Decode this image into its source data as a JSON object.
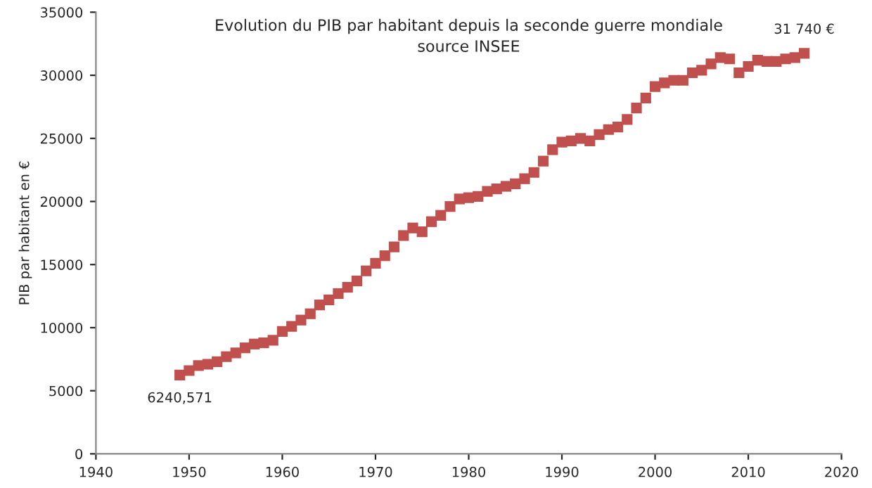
{
  "chart_data": {
    "type": "scatter",
    "title": "Evolution du PIB par habitant depuis la seconde guerre mondiale",
    "subtitle": "source INSEE",
    "ylabel": "PIB par habitant en €",
    "x": [
      1949,
      1950,
      1951,
      1952,
      1953,
      1954,
      1955,
      1956,
      1957,
      1958,
      1959,
      1960,
      1961,
      1962,
      1963,
      1964,
      1965,
      1966,
      1967,
      1968,
      1969,
      1970,
      1971,
      1972,
      1973,
      1974,
      1975,
      1976,
      1977,
      1978,
      1979,
      1980,
      1981,
      1982,
      1983,
      1984,
      1985,
      1986,
      1987,
      1988,
      1989,
      1990,
      1991,
      1992,
      1993,
      1994,
      1995,
      1996,
      1997,
      1998,
      1999,
      2000,
      2001,
      2002,
      2003,
      2004,
      2005,
      2006,
      2007,
      2008,
      2009,
      2010,
      2011,
      2012,
      2013,
      2014,
      2015,
      2016
    ],
    "series": [
      {
        "color": "#c0504d",
        "values": [
          6240.571,
          6600,
          7000,
          7100,
          7300,
          7700,
          8000,
          8400,
          8700,
          8800,
          9000,
          9700,
          10100,
          10600,
          11100,
          11800,
          12200,
          12700,
          13200,
          13700,
          14500,
          15100,
          15700,
          16400,
          17300,
          17900,
          17600,
          18400,
          18900,
          19600,
          20200,
          20300,
          20400,
          20800,
          21000,
          21200,
          21400,
          21800,
          22300,
          23200,
          24100,
          24700,
          24800,
          25000,
          24800,
          25300,
          25700,
          25900,
          26500,
          27400,
          28200,
          29100,
          29400,
          29600,
          29600,
          30200,
          30400,
          30900,
          31400,
          31300,
          30200,
          30700,
          31200,
          31100,
          31100,
          31300,
          31400,
          31740
        ],
        "value_labels": [
          "6240,571",
          null,
          null,
          null,
          null,
          null,
          null,
          null,
          null,
          null,
          null,
          null,
          null,
          null,
          null,
          null,
          null,
          null,
          null,
          null,
          null,
          null,
          null,
          null,
          null,
          null,
          null,
          null,
          null,
          null,
          null,
          null,
          null,
          null,
          null,
          null,
          null,
          null,
          null,
          null,
          null,
          null,
          null,
          null,
          null,
          null,
          null,
          null,
          null,
          null,
          null,
          null,
          null,
          null,
          null,
          null,
          null,
          null,
          null,
          null,
          null,
          null,
          null,
          null,
          null,
          null,
          null,
          "31 740 €"
        ]
      }
    ],
    "xlim": [
      1940,
      2020
    ],
    "xticks": [
      1940,
      1950,
      1960,
      1970,
      1980,
      1990,
      2000,
      2010,
      2020
    ],
    "ylim": [
      0,
      35000
    ],
    "yticks": [
      0,
      5000,
      10000,
      15000,
      20000,
      25000,
      30000,
      35000
    ],
    "marker": "square",
    "grid": false
  }
}
